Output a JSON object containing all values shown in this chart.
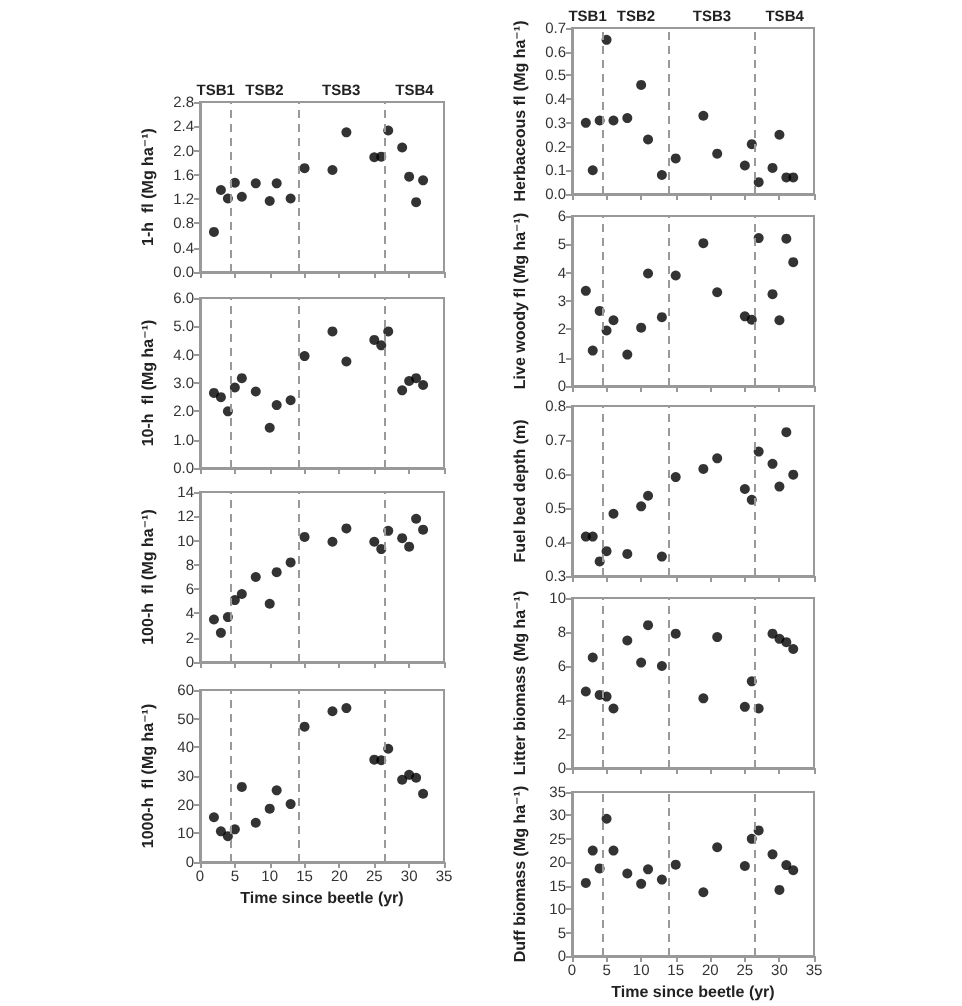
{
  "chart_data": [
    {
      "type": "scatter",
      "ylabel": "1-h  fl (Mg ha⁻¹)",
      "marker": "circle",
      "color": "#000000",
      "tick_labels": "y",
      "x": [
        2,
        3,
        4,
        5,
        6,
        8,
        10,
        11,
        13,
        15,
        19,
        21,
        25,
        26,
        27,
        29,
        30,
        31,
        32
      ],
      "values": [
        0.66,
        1.35,
        1.21,
        1.47,
        1.24,
        1.46,
        1.17,
        1.46,
        1.21,
        1.71,
        1.68,
        2.3,
        1.89,
        1.9,
        2.33,
        2.05,
        1.57,
        1.15,
        1.51
      ],
      "xlim": [
        0,
        35
      ],
      "xticks": [
        0,
        5,
        10,
        15,
        20,
        25,
        30,
        35
      ],
      "ylim": [
        0,
        2.8
      ],
      "yticks": [
        {
          "value": 0,
          "label": "0.0"
        },
        0.4,
        0.8,
        1.2,
        1.6,
        {
          "value": 2,
          "label": "2.0"
        },
        2.4,
        2.8
      ],
      "ref_lines": [
        {
          "axis": "x",
          "value": 4.5,
          "line_style": "dashed",
          "color": "#999999"
        },
        {
          "axis": "x",
          "value": 14,
          "line_style": "dashed",
          "color": "#999999"
        },
        {
          "axis": "x",
          "value": 26.5,
          "line_style": "dashed",
          "color": "#999999"
        }
      ],
      "annotations": [
        "TSB1",
        "TSB2",
        "TSB3",
        "TSB4"
      ]
    },
    {
      "type": "scatter",
      "ylabel": "10-h  fl (Mg ha⁻¹)",
      "marker": "circle",
      "color": "#000000",
      "tick_labels": "y",
      "x": [
        2,
        3,
        4,
        5,
        6,
        8,
        10,
        11,
        13,
        15,
        19,
        21,
        25,
        26,
        27,
        29,
        30,
        31,
        32
      ],
      "values": [
        2.65,
        2.5,
        2.0,
        2.84,
        3.17,
        2.7,
        1.42,
        2.22,
        2.39,
        3.95,
        4.82,
        3.76,
        4.52,
        4.33,
        4.82,
        2.74,
        3.07,
        3.17,
        2.93
      ],
      "xlim": [
        0,
        35
      ],
      "xticks": [
        0,
        5,
        10,
        15,
        20,
        25,
        30,
        35
      ],
      "ylim": [
        0,
        6
      ],
      "yticks": [
        {
          "value": 0,
          "label": "0.0"
        },
        {
          "value": 1,
          "label": "1.0"
        },
        {
          "value": 2,
          "label": "2.0"
        },
        {
          "value": 3,
          "label": "3.0"
        },
        {
          "value": 4,
          "label": "4.0"
        },
        {
          "value": 5,
          "label": "5.0"
        },
        {
          "value": 6,
          "label": "6.0"
        }
      ],
      "ref_lines": [
        {
          "axis": "x",
          "value": 4.5,
          "line_style": "dashed",
          "color": "#999999"
        },
        {
          "axis": "x",
          "value": 14,
          "line_style": "dashed",
          "color": "#999999"
        },
        {
          "axis": "x",
          "value": 26.5,
          "line_style": "dashed",
          "color": "#999999"
        }
      ]
    },
    {
      "type": "scatter",
      "ylabel": "100-h  fl (Mg ha⁻¹)",
      "marker": "circle",
      "color": "#000000",
      "tick_labels": "y",
      "x": [
        2,
        3,
        4,
        5,
        6,
        8,
        10,
        11,
        13,
        15,
        19,
        21,
        25,
        26,
        27,
        29,
        30,
        31,
        32
      ],
      "values": [
        3.5,
        2.4,
        3.7,
        5.1,
        5.6,
        7.0,
        4.8,
        7.4,
        8.2,
        10.3,
        9.9,
        11.0,
        9.9,
        9.3,
        10.8,
        10.2,
        9.5,
        11.8,
        10.9
      ],
      "xlim": [
        0,
        35
      ],
      "xticks": [
        0,
        5,
        10,
        15,
        20,
        25,
        30,
        35
      ],
      "ylim": [
        0,
        14
      ],
      "yticks": [
        0,
        2,
        4,
        6,
        8,
        10,
        12,
        14
      ],
      "ref_lines": [
        {
          "axis": "x",
          "value": 4.5,
          "line_style": "dashed",
          "color": "#999999"
        },
        {
          "axis": "x",
          "value": 14,
          "line_style": "dashed",
          "color": "#999999"
        },
        {
          "axis": "x",
          "value": 26.5,
          "line_style": "dashed",
          "color": "#999999"
        }
      ]
    },
    {
      "type": "scatter",
      "ylabel": "1000-h  fl (Mg ha⁻¹)",
      "xlabel": "Time since beetle (yr)",
      "marker": "circle",
      "color": "#000000",
      "x": [
        2,
        3,
        4,
        5,
        6,
        8,
        10,
        11,
        13,
        15,
        19,
        21,
        25,
        26,
        27,
        29,
        30,
        31,
        32
      ],
      "values": [
        15.6,
        10.7,
        9,
        11.4,
        26.2,
        13.7,
        18.6,
        25,
        20.2,
        47.2,
        52.6,
        53.7,
        35.7,
        35.5,
        39.5,
        28.7,
        30.4,
        29.4,
        23.8
      ],
      "xlim": [
        0,
        35
      ],
      "xticks": [
        0,
        5,
        10,
        15,
        20,
        25,
        30,
        35
      ],
      "ylim": [
        0,
        60
      ],
      "yticks": [
        0,
        10,
        20,
        30,
        40,
        50,
        60
      ],
      "ref_lines": [
        {
          "axis": "x",
          "value": 4.5,
          "line_style": "dashed",
          "color": "#999999"
        },
        {
          "axis": "x",
          "value": 14,
          "line_style": "dashed",
          "color": "#999999"
        },
        {
          "axis": "x",
          "value": 26.5,
          "line_style": "dashed",
          "color": "#999999"
        }
      ]
    },
    {
      "type": "scatter",
      "ylabel": "Herbaceous fl (Mg ha⁻¹)",
      "marker": "circle",
      "color": "#000000",
      "tick_labels": "y",
      "x": [
        2,
        3,
        4,
        5,
        6,
        8,
        10,
        11,
        13,
        15,
        19,
        21,
        25,
        26,
        27,
        29,
        30,
        31,
        32
      ],
      "values": [
        0.3,
        0.1,
        0.31,
        0.65,
        0.31,
        0.32,
        0.46,
        0.23,
        0.08,
        0.15,
        0.33,
        0.17,
        0.12,
        0.21,
        0.05,
        0.11,
        0.25,
        0.07,
        0.07
      ],
      "xlim": [
        0,
        35
      ],
      "xticks": [
        0,
        5,
        10,
        15,
        20,
        25,
        30,
        35
      ],
      "ylim": [
        0,
        0.7
      ],
      "yticks": [
        {
          "value": 0,
          "label": "0.0"
        },
        0.1,
        0.2,
        0.3,
        0.4,
        0.5,
        0.6,
        0.7
      ],
      "ref_lines": [
        {
          "axis": "x",
          "value": 4.5,
          "line_style": "dashed",
          "color": "#999999"
        },
        {
          "axis": "x",
          "value": 14,
          "line_style": "dashed",
          "color": "#999999"
        },
        {
          "axis": "x",
          "value": 26.5,
          "line_style": "dashed",
          "color": "#999999"
        }
      ],
      "annotations": [
        "TSB1",
        "TSB2",
        "TSB3",
        "TSB4"
      ]
    },
    {
      "type": "scatter",
      "ylabel": "Live woody fl (Mg ha⁻¹)",
      "marker": "circle",
      "color": "#000000",
      "tick_labels": "y",
      "x": [
        2,
        3,
        4,
        5,
        6,
        8,
        10,
        11,
        13,
        15,
        19,
        21,
        25,
        26,
        27,
        29,
        30,
        31,
        32
      ],
      "values": [
        3.36,
        1.25,
        2.65,
        1.96,
        2.32,
        1.11,
        2.06,
        3.97,
        2.43,
        3.9,
        5.04,
        3.31,
        2.46,
        2.34,
        5.22,
        3.24,
        2.32,
        5.2,
        4.37
      ],
      "xlim": [
        0,
        35
      ],
      "xticks": [
        0,
        5,
        10,
        15,
        20,
        25,
        30,
        35
      ],
      "ylim": [
        0,
        6
      ],
      "yticks": [
        0,
        1,
        2,
        3,
        4,
        5,
        6
      ],
      "ref_lines": [
        {
          "axis": "x",
          "value": 4.5,
          "line_style": "dashed",
          "color": "#999999"
        },
        {
          "axis": "x",
          "value": 14,
          "line_style": "dashed",
          "color": "#999999"
        },
        {
          "axis": "x",
          "value": 26.5,
          "line_style": "dashed",
          "color": "#999999"
        }
      ]
    },
    {
      "type": "scatter",
      "ylabel": "Fuel bed depth (m)",
      "marker": "circle",
      "color": "#000000",
      "tick_labels": "y",
      "x": [
        2,
        3,
        4,
        5,
        6,
        8,
        10,
        11,
        13,
        15,
        19,
        21,
        25,
        26,
        27,
        29,
        30,
        31,
        32
      ],
      "values": [
        0.416,
        0.416,
        0.343,
        0.373,
        0.483,
        0.365,
        0.505,
        0.536,
        0.357,
        0.591,
        0.615,
        0.646,
        0.556,
        0.524,
        0.666,
        0.63,
        0.563,
        0.723,
        0.598
      ],
      "xlim": [
        0,
        35
      ],
      "xticks": [
        0,
        5,
        10,
        15,
        20,
        25,
        30,
        35
      ],
      "ylim": [
        0.3,
        0.8
      ],
      "yticks": [
        0.3,
        0.4,
        0.5,
        0.6,
        0.7,
        0.8
      ],
      "ref_lines": [
        {
          "axis": "x",
          "value": 4.5,
          "line_style": "dashed",
          "color": "#999999"
        },
        {
          "axis": "x",
          "value": 14,
          "line_style": "dashed",
          "color": "#999999"
        },
        {
          "axis": "x",
          "value": 26.5,
          "line_style": "dashed",
          "color": "#999999"
        }
      ]
    },
    {
      "type": "scatter",
      "ylabel": "Litter biomass (Mg ha⁻¹)",
      "marker": "circle",
      "color": "#000000",
      "tick_labels": "y",
      "x": [
        2,
        3,
        4,
        5,
        6,
        8,
        10,
        11,
        13,
        15,
        19,
        21,
        25,
        26,
        27,
        29,
        30,
        31,
        32
      ],
      "values": [
        4.5,
        6.5,
        4.3,
        4.2,
        3.5,
        7.5,
        6.2,
        8.4,
        6.0,
        7.9,
        4.1,
        7.7,
        3.6,
        5.1,
        3.5,
        7.9,
        7.6,
        7.4,
        7.0
      ],
      "xlim": [
        0,
        35
      ],
      "xticks": [
        0,
        5,
        10,
        15,
        20,
        25,
        30,
        35
      ],
      "ylim": [
        0,
        10
      ],
      "yticks": [
        0,
        2,
        4,
        6,
        8,
        10
      ],
      "ref_lines": [
        {
          "axis": "x",
          "value": 4.5,
          "line_style": "dashed",
          "color": "#999999"
        },
        {
          "axis": "x",
          "value": 14,
          "line_style": "dashed",
          "color": "#999999"
        },
        {
          "axis": "x",
          "value": 26.5,
          "line_style": "dashed",
          "color": "#999999"
        }
      ]
    },
    {
      "type": "scatter",
      "ylabel": "Duff biomass (Mg ha⁻¹)",
      "xlabel": "Time since beetle (yr)",
      "marker": "circle",
      "color": "#000000",
      "x": [
        2,
        3,
        4,
        5,
        6,
        8,
        10,
        11,
        13,
        15,
        19,
        21,
        25,
        26,
        27,
        29,
        30,
        31,
        32
      ],
      "values": [
        15.6,
        22.5,
        18.7,
        29.3,
        22.5,
        17.6,
        15.4,
        18.5,
        16.3,
        19.5,
        13.6,
        23.2,
        19.2,
        25,
        26.8,
        21.7,
        14.1,
        19.4,
        18.3
      ],
      "xlim": [
        0,
        35
      ],
      "xticks": [
        0,
        5,
        10,
        15,
        20,
        25,
        30,
        35
      ],
      "ylim": [
        0,
        35
      ],
      "yticks": [
        0,
        5,
        10,
        15,
        20,
        25,
        30,
        35
      ],
      "ref_lines": [
        {
          "axis": "x",
          "value": 4.5,
          "line_style": "dashed",
          "color": "#999999"
        },
        {
          "axis": "x",
          "value": 14,
          "line_style": "dashed",
          "color": "#999999"
        },
        {
          "axis": "x",
          "value": 26.5,
          "line_style": "dashed",
          "color": "#999999"
        }
      ]
    }
  ]
}
